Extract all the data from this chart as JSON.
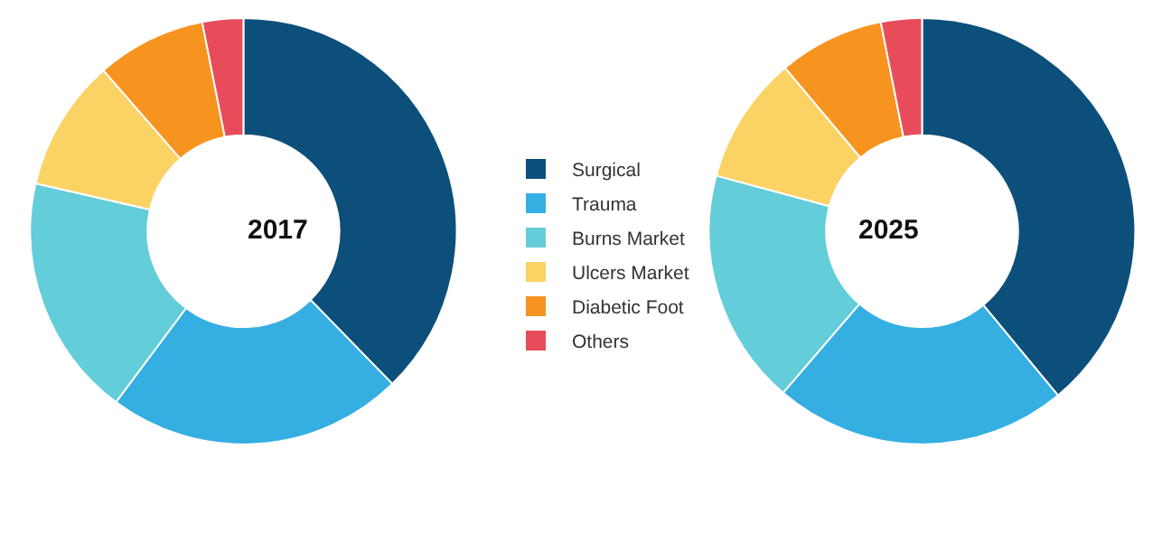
{
  "chart_data": {
    "type": "donut",
    "legend": "right",
    "categories": [
      "Surgical",
      "Trauma",
      "Burns Market",
      "Ulcers Market",
      "Diabetic Foot",
      "Others"
    ],
    "colors": [
      "#0d4f7b",
      "#35aee2",
      "#63cdd9",
      "#fbd264",
      "#f7931f",
      "#e84c5a"
    ],
    "series": [
      {
        "name": "2017",
        "values": [
          37.7,
          22.5,
          18.4,
          10,
          8.3,
          3.1
        ]
      },
      {
        "name": "2025",
        "values": [
          39,
          22.3,
          17.9,
          9.7,
          8,
          3.1
        ]
      }
    ]
  }
}
